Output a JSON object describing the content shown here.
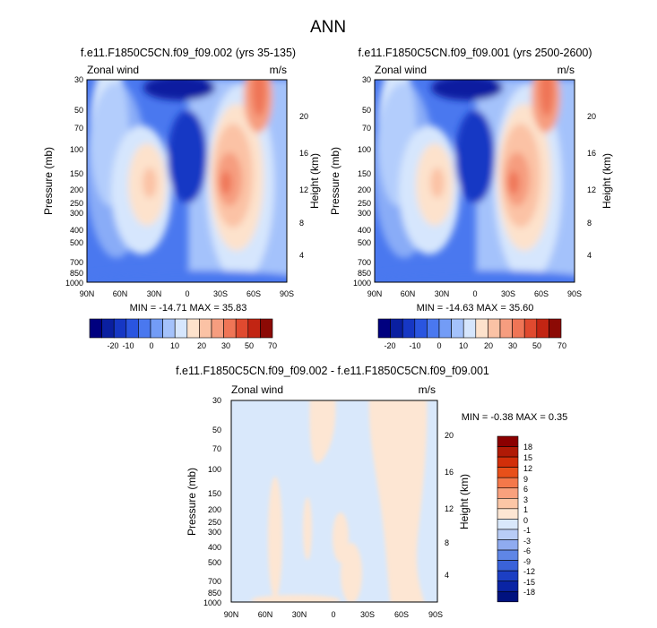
{
  "page_title": "ANN",
  "chart_data": [
    {
      "type": "heatmap",
      "title": "f.e11.F1850C5CN.f09_f09.002 (yrs 35-135)",
      "left_label": "Zonal wind",
      "right_label": "m/s",
      "ylabel": "Pressure (mb)",
      "y2label": "Height (km)",
      "x_ticks": [
        "90N",
        "60N",
        "30N",
        "0",
        "30S",
        "60S",
        "90S"
      ],
      "y_ticks": [
        "30",
        "50",
        "70",
        "100",
        "150",
        "200",
        "250",
        "300",
        "400",
        "500",
        "700",
        "850",
        "1000"
      ],
      "y2_ticks": [
        "20",
        "16",
        "12",
        "8",
        "4"
      ],
      "stats": "MIN = -14.71  MAX = 35.83",
      "colorbar_labels": [
        "-20",
        "-10",
        "0",
        "10",
        "20",
        "30",
        "50",
        "70"
      ]
    },
    {
      "type": "heatmap",
      "title": "f.e11.F1850C5CN.f09_f09.001 (yrs 2500-2600)",
      "left_label": "Zonal wind",
      "right_label": "m/s",
      "ylabel": "Pressure (mb)",
      "y2label": "Height (km)",
      "x_ticks": [
        "90N",
        "60N",
        "30N",
        "0",
        "30S",
        "60S",
        "90S"
      ],
      "y_ticks": [
        "30",
        "50",
        "70",
        "100",
        "150",
        "200",
        "250",
        "300",
        "400",
        "500",
        "700",
        "850",
        "1000"
      ],
      "y2_ticks": [
        "20",
        "16",
        "12",
        "8",
        "4"
      ],
      "stats": "MIN = -14.63  MAX = 35.60",
      "colorbar_labels": [
        "-20",
        "-10",
        "0",
        "10",
        "20",
        "30",
        "50",
        "70"
      ]
    },
    {
      "type": "heatmap",
      "title": "f.e11.F1850C5CN.f09_f09.002 - f.e11.F1850C5CN.f09_f09.001",
      "left_label": "Zonal wind",
      "right_label": "m/s",
      "ylabel": "Pressure (mb)",
      "y2label": "Height (km)",
      "x_ticks": [
        "90N",
        "60N",
        "30N",
        "0",
        "30S",
        "60S",
        "90S"
      ],
      "y_ticks": [
        "30",
        "50",
        "70",
        "100",
        "150",
        "200",
        "250",
        "300",
        "400",
        "500",
        "700",
        "850",
        "1000"
      ],
      "y2_ticks": [
        "20",
        "16",
        "12",
        "8",
        "4"
      ],
      "stats": "MIN =  -0.38  MAX =   0.35",
      "colorbar_labels": [
        "18",
        "15",
        "12",
        "9",
        "6",
        "3",
        "1",
        "0",
        "-1",
        "-3",
        "-6",
        "-9",
        "-12",
        "-15",
        "-18"
      ]
    }
  ],
  "colors": {
    "top_scale": [
      "#00007f",
      "#0a1fa0",
      "#1637c4",
      "#2a55e0",
      "#4a78ef",
      "#739cf6",
      "#a4c2fb",
      "#d6e6fd",
      "#fde2cc",
      "#fbc2a5",
      "#f69d7f",
      "#ef7556",
      "#e04a2f",
      "#c22513",
      "#8c0a05"
    ],
    "diff_scale": [
      "#8b0000",
      "#b01a06",
      "#d22f0a",
      "#e8501a",
      "#f4784a",
      "#f9a17d",
      "#fcc6a6",
      "#fde6d3",
      "#d9e8fb",
      "#b8ccf6",
      "#8fabf0",
      "#5f86e6",
      "#3a62d9",
      "#1c3fc3",
      "#0a24a4",
      "#00127f"
    ]
  }
}
